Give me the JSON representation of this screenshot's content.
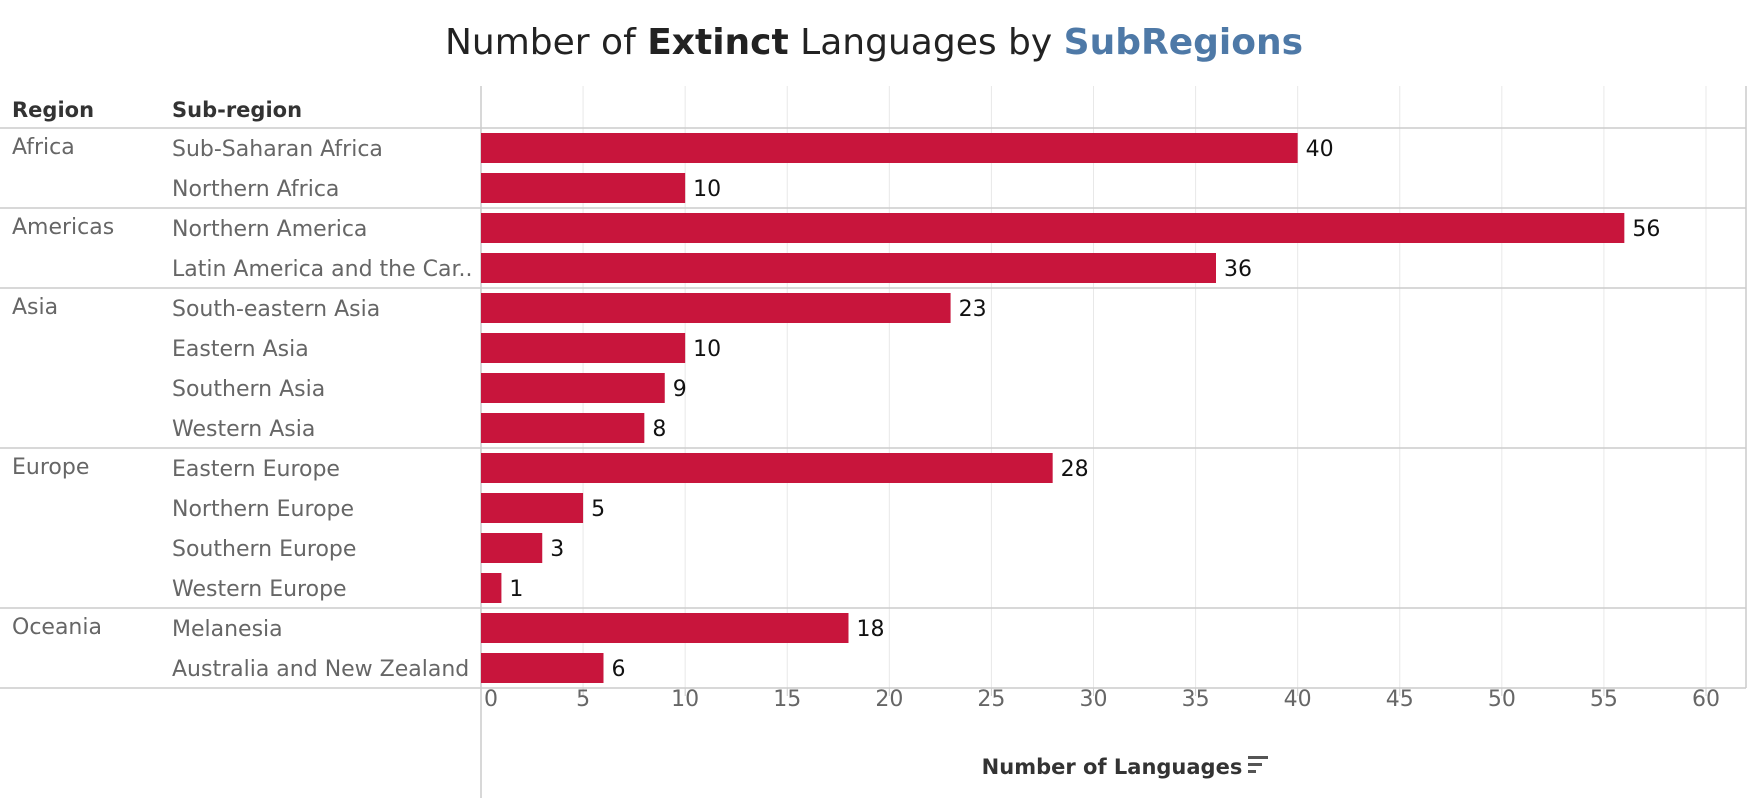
{
  "title": {
    "prefix": "Number of ",
    "bold": "Extinct",
    "middle": " Languages by ",
    "accent": "SubRegions"
  },
  "headers": {
    "region": "Region",
    "subregion": "Sub-region"
  },
  "colors": {
    "bar": "#c8153c",
    "accent": "#4e79a7",
    "grid": "#e8e8e8",
    "separator": "#cccccc"
  },
  "chart_data": {
    "type": "bar",
    "orientation": "horizontal",
    "xlabel": "Number of Languages",
    "xlim": [
      0,
      60
    ],
    "xticks": [
      0,
      5,
      10,
      15,
      20,
      25,
      30,
      35,
      40,
      45,
      50,
      55,
      60
    ],
    "grid": true,
    "groups": [
      {
        "region": "Africa",
        "rows": [
          {
            "subregion": "Sub-Saharan Africa",
            "value": 40
          },
          {
            "subregion": "Northern Africa",
            "value": 10
          }
        ]
      },
      {
        "region": "Americas",
        "rows": [
          {
            "subregion": "Northern America",
            "value": 56
          },
          {
            "subregion": "Latin America and the Car..",
            "value": 36
          }
        ]
      },
      {
        "region": "Asia",
        "rows": [
          {
            "subregion": "South-eastern Asia",
            "value": 23
          },
          {
            "subregion": "Eastern Asia",
            "value": 10
          },
          {
            "subregion": "Southern Asia",
            "value": 9
          },
          {
            "subregion": "Western Asia",
            "value": 8
          }
        ]
      },
      {
        "region": "Europe",
        "rows": [
          {
            "subregion": "Eastern Europe",
            "value": 28
          },
          {
            "subregion": "Northern Europe",
            "value": 5
          },
          {
            "subregion": "Southern Europe",
            "value": 3
          },
          {
            "subregion": "Western Europe",
            "value": 1
          }
        ]
      },
      {
        "region": "Oceania",
        "rows": [
          {
            "subregion": "Melanesia",
            "value": 18
          },
          {
            "subregion": "Australia and New Zealand",
            "value": 6
          }
        ]
      }
    ]
  }
}
